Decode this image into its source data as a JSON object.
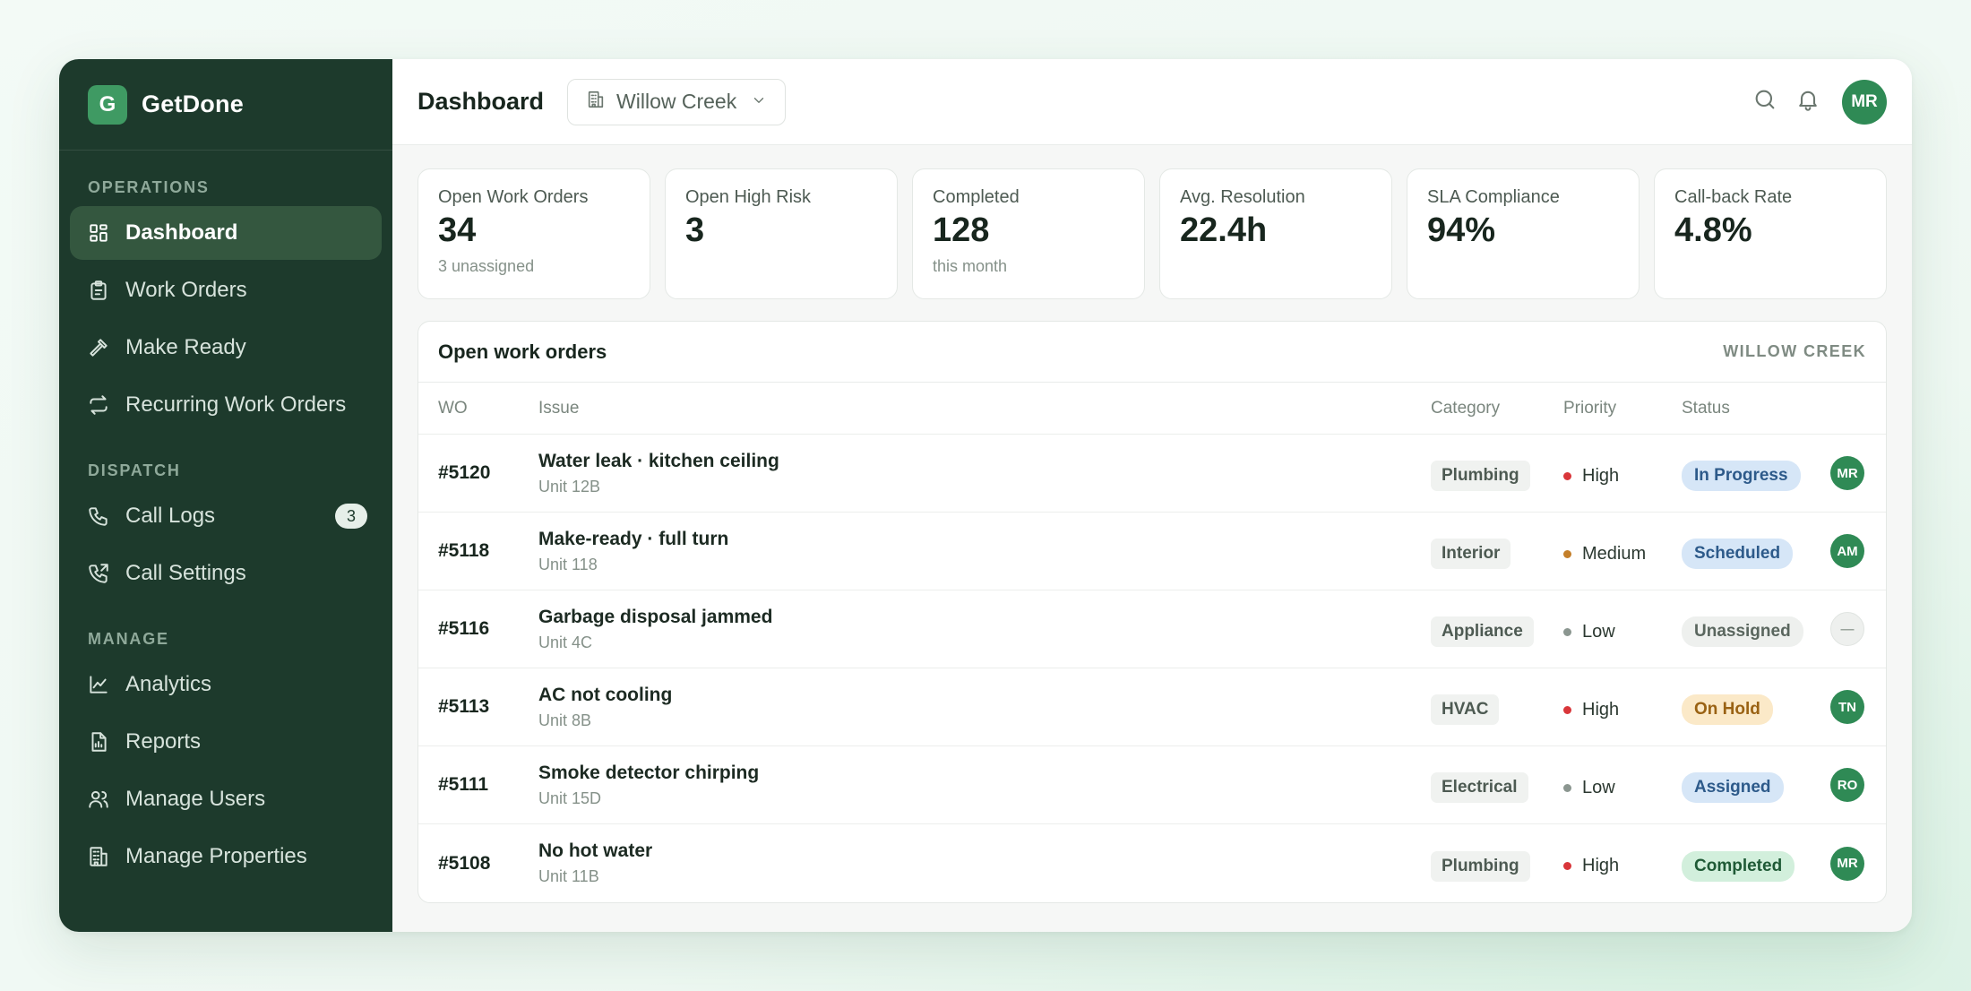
{
  "brand": {
    "logo_letter": "G",
    "name": "GetDone"
  },
  "sidebar": {
    "sections": [
      {
        "label": "OPERATIONS",
        "items": [
          {
            "label": "Dashboard",
            "icon": "dashboard-icon",
            "active": true
          },
          {
            "label": "Work Orders",
            "icon": "clipboard-icon"
          },
          {
            "label": "Make Ready",
            "icon": "hammer-icon"
          },
          {
            "label": "Recurring Work Orders",
            "icon": "repeat-icon"
          }
        ]
      },
      {
        "label": "DISPATCH",
        "items": [
          {
            "label": "Call Logs",
            "icon": "phone-icon",
            "badge": "3"
          },
          {
            "label": "Call Settings",
            "icon": "phone-settings-icon"
          }
        ]
      },
      {
        "label": "MANAGE",
        "items": [
          {
            "label": "Analytics",
            "icon": "chart-line-icon"
          },
          {
            "label": "Reports",
            "icon": "document-icon"
          },
          {
            "label": "Manage Users",
            "icon": "users-icon"
          },
          {
            "label": "Manage Properties",
            "icon": "building-icon"
          }
        ]
      }
    ]
  },
  "header": {
    "title": "Dashboard",
    "property_select": {
      "value": "Willow Creek",
      "icon": "building-icon"
    },
    "user_initials": "MR"
  },
  "stats": [
    {
      "label": "Open Work Orders",
      "value": "34",
      "sub": "3 unassigned"
    },
    {
      "label": "Open High Risk",
      "value": "3",
      "sub": ""
    },
    {
      "label": "Completed",
      "value": "128",
      "sub": "this month"
    },
    {
      "label": "Avg. Resolution",
      "value": "22.4h",
      "sub": ""
    },
    {
      "label": "SLA Compliance",
      "value": "94%",
      "sub": ""
    },
    {
      "label": "Call-back Rate",
      "value": "4.8%",
      "sub": ""
    }
  ],
  "table": {
    "title": "Open work orders",
    "tag": "WILLOW CREEK",
    "columns": {
      "wo": "WO",
      "issue": "Issue",
      "category": "Category",
      "priority": "Priority",
      "status": "Status"
    },
    "rows": [
      {
        "wo": "#5120",
        "issue": "Water leak · kitchen ceiling",
        "unit": "Unit 12B",
        "category": "Plumbing",
        "priority": "High",
        "status": "In Progress",
        "assignee": "MR"
      },
      {
        "wo": "#5118",
        "issue": "Make-ready · full turn",
        "unit": "Unit 118",
        "category": "Interior",
        "priority": "Medium",
        "status": "Scheduled",
        "assignee": "AM"
      },
      {
        "wo": "#5116",
        "issue": "Garbage disposal jammed",
        "unit": "Unit 4C",
        "category": "Appliance",
        "priority": "Low",
        "status": "Unassigned",
        "assignee": "—"
      },
      {
        "wo": "#5113",
        "issue": "AC not cooling",
        "unit": "Unit 8B",
        "category": "HVAC",
        "priority": "High",
        "status": "On Hold",
        "assignee": "TN"
      },
      {
        "wo": "#5111",
        "issue": "Smoke detector chirping",
        "unit": "Unit 15D",
        "category": "Electrical",
        "priority": "Low",
        "status": "Assigned",
        "assignee": "RO"
      },
      {
        "wo": "#5108",
        "issue": "No hot water",
        "unit": "Unit 11B",
        "category": "Plumbing",
        "priority": "High",
        "status": "Completed",
        "assignee": "MR"
      }
    ]
  },
  "colors": {
    "priority": {
      "High": "#d9363a",
      "Medium": "#c47f2a",
      "Low": "#8b9690"
    },
    "status": {
      "In Progress": {
        "bg": "#d6e6f7",
        "fg": "#2d5a8a"
      },
      "Scheduled": {
        "bg": "#d6e6f7",
        "fg": "#2d5a8a"
      },
      "Unassigned": {
        "bg": "#eef0ee",
        "fg": "#5a665e"
      },
      "On Hold": {
        "bg": "#fbe9c8",
        "fg": "#9a6213"
      },
      "Assigned": {
        "bg": "#d6e6f7",
        "fg": "#2d5a8a"
      },
      "Completed": {
        "bg": "#d2efdc",
        "fg": "#1f5a36"
      }
    }
  }
}
